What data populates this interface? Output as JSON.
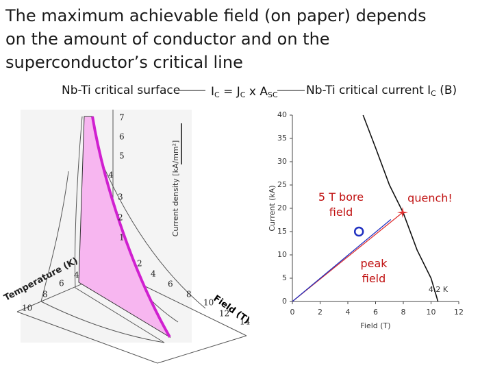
{
  "header": {
    "title": "The maximum achievable field (on paper) depends on the amount of conductor and on the superconductor’s critical line",
    "left_caption": "Nb-Ti critical surface",
    "formula": [
      "I",
      "C",
      " = J",
      "C",
      " x A",
      "SC"
    ],
    "right_caption": [
      "Nb-Ti critical current I",
      "C",
      " (B)"
    ]
  },
  "surface": {
    "j_label": "Current density [kA/mm²]",
    "j_ticks": [
      "1",
      "2",
      "3",
      "4",
      "5",
      "6",
      "7"
    ],
    "b_label": "Field (T)",
    "b_ticks": [
      "2",
      "4",
      "6",
      "8",
      "10",
      "12",
      "14"
    ],
    "t_label": "Temperature (K)",
    "t_ticks": [
      "4",
      "6",
      "8",
      "10"
    ]
  },
  "chart_data": {
    "type": "line",
    "x_label": "Field (T)",
    "y_label": "Current (kA)",
    "xlim": [
      0,
      12
    ],
    "ylim": [
      0,
      40
    ],
    "xticks": [
      0,
      2,
      4,
      6,
      8,
      10,
      12
    ],
    "yticks": [
      0,
      5,
      10,
      15,
      20,
      25,
      30,
      35,
      40
    ],
    "series": [
      {
        "color": "#111111",
        "x": [
          5.1,
          6,
          7,
          8,
          9,
          10,
          10.5
        ],
        "values": [
          40,
          33,
          25,
          19,
          11,
          5,
          0
        ]
      },
      {
        "color": "#e03030",
        "x": [
          0,
          7.95
        ],
        "values": [
          0,
          19.1
        ]
      },
      {
        "color": "#2030c0",
        "x": [
          0,
          7.1
        ],
        "values": [
          0,
          17.6
        ]
      }
    ],
    "markers": [
      {
        "x": 4.8,
        "y": 15,
        "color": "#2030c0",
        "shape": "circle"
      },
      {
        "x": 7.95,
        "y": 19.1,
        "color": "#e03030",
        "shape": "star"
      }
    ],
    "annotations": {
      "bore": "5 T bore field",
      "quench": "quench!",
      "peak": "peak field",
      "curve": "4.2 K"
    }
  }
}
